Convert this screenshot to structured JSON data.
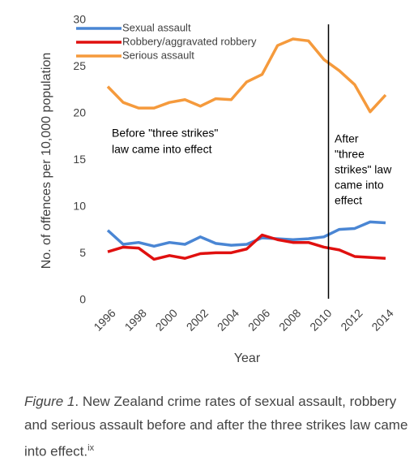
{
  "chart_data": {
    "type": "line",
    "x": [
      1996,
      1997,
      1998,
      1999,
      2000,
      2001,
      2002,
      2003,
      2004,
      2005,
      2006,
      2007,
      2008,
      2009,
      2010,
      2011,
      2012,
      2013,
      2014
    ],
    "series": [
      {
        "name": "Sexual assault",
        "color": "#4a86d4",
        "values": [
          7.5,
          6.0,
          6.2,
          5.8,
          6.2,
          6.0,
          6.8,
          6.1,
          5.9,
          6.0,
          6.7,
          6.6,
          6.5,
          6.6,
          6.8,
          7.6,
          7.7,
          8.4,
          8.3
        ]
      },
      {
        "name": "Robbery/aggravated robbery",
        "color": "#e0100f",
        "values": [
          5.2,
          5.7,
          5.6,
          4.4,
          4.8,
          4.5,
          5.0,
          5.1,
          5.1,
          5.5,
          7.0,
          6.5,
          6.2,
          6.2,
          5.7,
          5.4,
          4.7,
          4.6,
          4.5
        ]
      },
      {
        "name": "Serious assault",
        "color": "#f59a3c",
        "values": [
          22.9,
          21.2,
          20.6,
          20.6,
          21.2,
          21.5,
          20.8,
          21.6,
          21.5,
          23.4,
          24.2,
          27.3,
          28.0,
          27.8,
          25.8,
          24.6,
          23.1,
          20.2,
          22.0
        ]
      }
    ],
    "xlim": [
      1996,
      2014
    ],
    "xticks": [
      1996,
      1998,
      2000,
      2002,
      2004,
      2006,
      2008,
      2010,
      2012,
      2014
    ],
    "ylim": [
      0,
      30
    ],
    "yticks": [
      0,
      5,
      10,
      15,
      20,
      25,
      30
    ],
    "xlabel": "Year",
    "ylabel": "No. of offences per 10,000 population",
    "divider_x": 2010.3,
    "annotation_before": [
      "Before \"three strikes\"",
      "law came into effect"
    ],
    "annotation_after": [
      "After",
      "\"three",
      "strikes\" law",
      "came into",
      "effect"
    ]
  },
  "caption": {
    "label": "Figure 1",
    "text": ". New Zealand crime rates of sexual assault, robbery and serious assault before and after the three strikes law came into effect.",
    "sup": "ix"
  }
}
